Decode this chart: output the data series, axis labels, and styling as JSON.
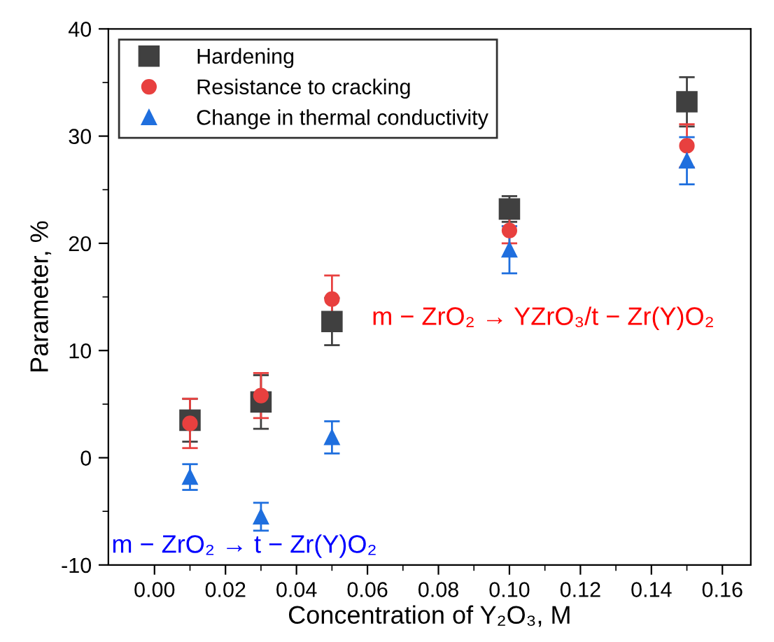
{
  "chart_data": {
    "type": "scatter",
    "xlabel": "Concentration of Y₂O₃, M",
    "ylabel": "Parameter, %",
    "x": [
      0.01,
      0.03,
      0.05,
      0.1,
      0.15
    ],
    "series": [
      {
        "name": "Hardening",
        "color": "#404040",
        "marker": "square",
        "values": [
          3.5,
          5.2,
          12.7,
          23.2,
          33.2
        ],
        "errors": [
          2.0,
          2.5,
          2.2,
          1.2,
          2.3
        ]
      },
      {
        "name": "Resistance to cracking",
        "color": "#e8403f",
        "marker": "circle",
        "values": [
          3.2,
          5.8,
          14.8,
          21.2,
          29.1
        ],
        "errors": [
          2.3,
          2.1,
          2.2,
          1.2,
          2.0
        ]
      },
      {
        "name": "Change in thermal conductivity",
        "color": "#1f6fde",
        "marker": "triangle",
        "values": [
          -1.8,
          -5.5,
          1.9,
          19.4,
          27.7
        ],
        "errors": [
          1.2,
          1.3,
          1.5,
          2.2,
          2.2
        ]
      }
    ],
    "annotations": [
      "m − ZrO₂ → YZrO₃/t − Zr(Y)O₂",
      "m − ZrO₂ → t − Zr(Y)O₂"
    ],
    "xlim": [
      -0.013,
      0.168
    ],
    "ylim": [
      -10,
      40
    ],
    "xticks": [
      {
        "value": 0.0,
        "label": "0.00"
      },
      {
        "value": 0.02,
        "label": "0.02"
      },
      {
        "value": 0.04,
        "label": "0.04"
      },
      {
        "value": 0.06,
        "label": "0.06"
      },
      {
        "value": 0.08,
        "label": "0.08"
      },
      {
        "value": 0.1,
        "label": "0.10"
      },
      {
        "value": 0.12,
        "label": "0.12"
      },
      {
        "value": 0.14,
        "label": "0.14"
      },
      {
        "value": 0.16,
        "label": "0.16"
      }
    ],
    "yticks": [
      -10,
      0,
      10,
      20,
      30,
      40
    ],
    "grid": false,
    "legend": "top left"
  }
}
